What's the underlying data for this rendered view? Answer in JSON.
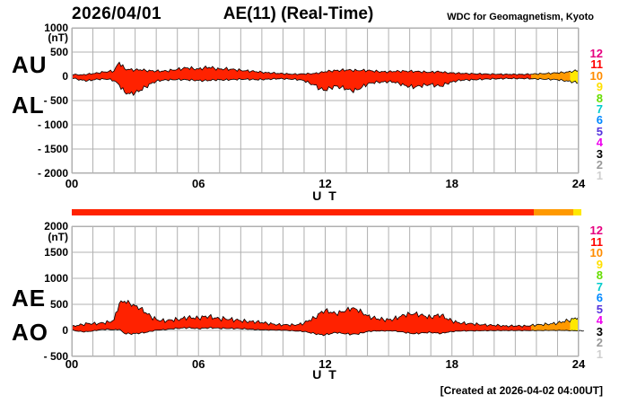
{
  "header": {
    "date": "2026/04/01",
    "title": "AE(11) (Real-Time)",
    "source": "WDC for Geomagnetism, Kyoto"
  },
  "footer": {
    "created_label": "[Created at 2026-04-02 04:00UT]"
  },
  "colors": {
    "background": "#ffffff",
    "grid": "#b0b0b0",
    "trace_outline": "#000000",
    "fill_red": "#ff2200",
    "fill_orange": "#ff9900",
    "fill_yellow": "#ffe800",
    "text": "#000000"
  },
  "station_legend": [
    {
      "count": "12",
      "color": "#e60080"
    },
    {
      "count": "11",
      "color": "#ff0000"
    },
    {
      "count": "10",
      "color": "#ff8c00"
    },
    {
      "count": "9",
      "color": "#ffe000"
    },
    {
      "count": "8",
      "color": "#66dd00"
    },
    {
      "count": "7",
      "color": "#00cccc"
    },
    {
      "count": "6",
      "color": "#0088ff"
    },
    {
      "count": "5",
      "color": "#5533dd"
    },
    {
      "count": "4",
      "color": "#ee00ee"
    },
    {
      "count": "3",
      "color": "#000000"
    },
    {
      "count": "2",
      "color": "#999999"
    },
    {
      "count": "1",
      "color": "#cfcfcf"
    }
  ],
  "quality_segments": [
    {
      "from_hour": 0,
      "to_hour": 21.75,
      "stations": 11,
      "color": "#ff2200"
    },
    {
      "from_hour": 21.75,
      "to_hour": 23.6,
      "stations": 10,
      "color": "#ff9900"
    },
    {
      "from_hour": 23.6,
      "to_hour": 24,
      "stations": 9,
      "color": "#ffe800"
    }
  ],
  "chart_data": [
    {
      "type": "area",
      "panel": "AU-AL",
      "left_labels": [
        "AU",
        "AL"
      ],
      "ylabel_unit": "(nT)",
      "ylim": [
        -2000,
        1000
      ],
      "yticks": [
        1000,
        500,
        0,
        -500,
        -1000,
        -1500,
        -2000
      ],
      "ytick_labels": [
        "1000",
        "500",
        "0",
        "- 500",
        "- 1000",
        "- 1500",
        "- 2000"
      ],
      "xlabel": "U T",
      "xticks": [
        0,
        6,
        12,
        18,
        24
      ],
      "xtick_labels": [
        "00",
        "06",
        "12",
        "18",
        "24"
      ],
      "x_start_hour": 0,
      "x_end_hour": 24,
      "x_step_hours": 0.25,
      "grid": {
        "x_every_hours": 1,
        "y_every_nt": 500
      },
      "series": [
        {
          "name": "AU",
          "values": [
            40,
            35,
            30,
            45,
            55,
            70,
            90,
            100,
            110,
            290,
            155,
            140,
            130,
            135,
            120,
            115,
            110,
            105,
            110,
            130,
            145,
            160,
            175,
            160,
            150,
            175,
            185,
            165,
            150,
            155,
            145,
            135,
            125,
            115,
            105,
            95,
            85,
            75,
            70,
            60,
            55,
            50,
            45,
            45,
            50,
            55,
            60,
            75,
            95,
            110,
            120,
            125,
            130,
            125,
            120,
            125,
            120,
            110,
            100,
            95,
            95,
            100,
            105,
            110,
            105,
            100,
            95,
            90,
            85,
            95,
            90,
            75,
            70,
            65,
            60,
            55,
            55,
            50,
            50,
            45,
            45,
            45,
            40,
            40,
            40,
            40,
            40,
            45,
            50,
            55,
            60,
            65,
            70,
            80,
            90,
            105,
            120
          ]
        },
        {
          "name": "AL",
          "values": [
            -30,
            -60,
            -80,
            -90,
            -75,
            -60,
            -55,
            -60,
            -90,
            -180,
            -330,
            -360,
            -340,
            -290,
            -220,
            -150,
            -100,
            -85,
            -75,
            -70,
            -65,
            -70,
            -75,
            -80,
            -85,
            -90,
            -85,
            -75,
            -70,
            -75,
            -70,
            -65,
            -60,
            -60,
            -65,
            -70,
            -65,
            -60,
            -55,
            -50,
            -50,
            -55,
            -60,
            -70,
            -90,
            -140,
            -180,
            -260,
            -290,
            -240,
            -200,
            -230,
            -260,
            -300,
            -280,
            -220,
            -160,
            -135,
            -120,
            -115,
            -110,
            -120,
            -150,
            -185,
            -210,
            -225,
            -200,
            -180,
            -165,
            -195,
            -205,
            -150,
            -115,
            -90,
            -80,
            -75,
            -70,
            -65,
            -60,
            -55,
            -50,
            -50,
            -45,
            -45,
            -45,
            -45,
            -45,
            -50,
            -55,
            -55,
            -60,
            -65,
            -70,
            -85,
            -100,
            -115,
            -140
          ]
        }
      ]
    },
    {
      "type": "area",
      "panel": "AE-AO",
      "left_labels": [
        "AE",
        "AO"
      ],
      "ylabel_unit": "(nT)",
      "ylim": [
        -500,
        2000
      ],
      "yticks": [
        2000,
        1500,
        1000,
        500,
        0,
        -500
      ],
      "ytick_labels": [
        "2000",
        "1500",
        "1000",
        "500",
        "0",
        "- 500"
      ],
      "xlabel": "U T",
      "xticks": [
        0,
        6,
        12,
        18,
        24
      ],
      "xtick_labels": [
        "00",
        "06",
        "12",
        "18",
        "24"
      ],
      "x_start_hour": 0,
      "x_end_hour": 24,
      "x_step_hours": 0.25,
      "grid": {
        "x_every_hours": 1,
        "y_every_nt": 500
      },
      "series": [
        {
          "name": "AE",
          "values": [
            70,
            95,
            110,
            135,
            130,
            130,
            145,
            160,
            200,
            520,
            560,
            520,
            470,
            425,
            340,
            265,
            210,
            190,
            185,
            200,
            210,
            230,
            250,
            240,
            235,
            265,
            270,
            240,
            220,
            230,
            215,
            200,
            185,
            175,
            170,
            165,
            150,
            135,
            125,
            110,
            105,
            105,
            105,
            115,
            140,
            195,
            240,
            335,
            385,
            350,
            320,
            355,
            390,
            425,
            400,
            345,
            280,
            245,
            220,
            210,
            205,
            220,
            255,
            295,
            315,
            325,
            295,
            270,
            250,
            290,
            295,
            225,
            185,
            155,
            140,
            130,
            125,
            115,
            110,
            100,
            95,
            95,
            85,
            85,
            85,
            85,
            85,
            95,
            105,
            110,
            120,
            130,
            140,
            165,
            190,
            220,
            260
          ]
        },
        {
          "name": "AO",
          "values": [
            5,
            -13,
            -25,
            -23,
            -10,
            5,
            18,
            20,
            10,
            20,
            -60,
            -65,
            -60,
            -50,
            -40,
            -18,
            5,
            10,
            18,
            30,
            40,
            45,
            50,
            40,
            33,
            43,
            50,
            45,
            40,
            40,
            38,
            35,
            33,
            28,
            20,
            13,
            10,
            8,
            8,
            5,
            3,
            -3,
            -8,
            -13,
            -20,
            -43,
            -60,
            -80,
            -85,
            -65,
            -40,
            -53,
            -65,
            -75,
            -70,
            -48,
            -20,
            -13,
            -10,
            -10,
            -8,
            -10,
            -23,
            -38,
            -53,
            -63,
            -53,
            -45,
            -40,
            -50,
            -58,
            -38,
            -23,
            -13,
            -10,
            -10,
            -8,
            -8,
            -5,
            -5,
            -3,
            -3,
            -3,
            -3,
            -3,
            -3,
            -3,
            -3,
            -3,
            -3,
            0,
            0,
            0,
            0,
            -3,
            -5,
            -5,
            -10
          ]
        }
      ]
    }
  ]
}
